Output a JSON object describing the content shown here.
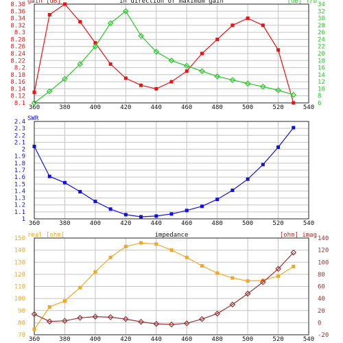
{
  "colors": {
    "gain": "#ee1111",
    "fb": "#22cc22",
    "swr": "#1111dd",
    "real": "#f5a623",
    "imag": "#993333",
    "grid": "#c4c4c4",
    "frame": "#222222",
    "label": "#111111"
  },
  "chart_data": [
    {
      "type": "line",
      "title": "in direction of maximum gain",
      "x": [
        360,
        370,
        380,
        390,
        400,
        410,
        420,
        430,
        440,
        450,
        460,
        470,
        480,
        490,
        500,
        510,
        520,
        530
      ],
      "xlim": [
        360,
        540
      ],
      "xticks": [
        "360",
        "380",
        "400",
        "420",
        "440",
        "460",
        "480",
        "500",
        "520",
        "540"
      ],
      "grid": true,
      "left_axis": {
        "label": "gain [dB]",
        "ylim": [
          8.1,
          8.38
        ],
        "ticks": [
          "8.1",
          "8.12",
          "8.14",
          "8.16",
          "8.18",
          "8.2",
          "8.22",
          "8.24",
          "8.26",
          "8.28",
          "8.3",
          "8.32",
          "8.34",
          "8.36",
          "8.38"
        ]
      },
      "right_axis": {
        "label": "[dB] f/b",
        "ylim": [
          6,
          34
        ],
        "ticks": [
          "6",
          "8",
          "10",
          "12",
          "14",
          "16",
          "18",
          "20",
          "22",
          "24",
          "26",
          "28",
          "30",
          "32",
          "34"
        ]
      },
      "series": [
        {
          "axis": "left",
          "marker": "square",
          "color_key": "gain",
          "values": [
            8.13,
            8.35,
            8.38,
            8.33,
            8.27,
            8.21,
            8.17,
            8.15,
            8.14,
            8.16,
            8.19,
            8.24,
            8.28,
            8.32,
            8.34,
            8.32,
            8.25,
            8.1
          ]
        },
        {
          "axis": "right",
          "marker": "diamond",
          "color_key": "fb",
          "values": [
            6,
            9.3,
            12.8,
            17.0,
            22.0,
            28.6,
            32.0,
            25.0,
            20.5,
            18.0,
            16.5,
            15.0,
            13.5,
            12.5,
            11.5,
            10.6,
            9.6,
            8.3
          ]
        }
      ]
    },
    {
      "type": "line",
      "title": "",
      "x": [
        360,
        370,
        380,
        390,
        400,
        410,
        420,
        430,
        440,
        450,
        460,
        470,
        480,
        490,
        500,
        510,
        520,
        530
      ],
      "xlim": [
        360,
        540
      ],
      "xticks": [
        "360",
        "380",
        "400",
        "420",
        "440",
        "460",
        "480",
        "500",
        "520",
        "540"
      ],
      "grid": true,
      "left_axis": {
        "label": "SWR",
        "ylim": [
          1,
          2.4
        ],
        "ticks": [
          "1",
          "1.1",
          "1.2",
          "1.3",
          "1.4",
          "1.5",
          "1.6",
          "1.7",
          "1.8",
          "1.9",
          "2",
          "2.1",
          "2.2",
          "2.3",
          "2.4"
        ]
      },
      "series": [
        {
          "axis": "left",
          "marker": "square",
          "color_key": "swr",
          "values": [
            2.04,
            1.61,
            1.52,
            1.39,
            1.25,
            1.14,
            1.06,
            1.03,
            1.04,
            1.07,
            1.12,
            1.18,
            1.28,
            1.41,
            1.57,
            1.78,
            2.03,
            2.31
          ]
        }
      ]
    },
    {
      "type": "line",
      "title": "impedance",
      "x": [
        360,
        370,
        380,
        390,
        400,
        410,
        420,
        430,
        440,
        450,
        460,
        470,
        480,
        490,
        500,
        510,
        520,
        530
      ],
      "xlim": [
        360,
        540
      ],
      "xticks": [
        "360",
        "380",
        "400",
        "420",
        "440",
        "460",
        "480",
        "500",
        "520",
        "540"
      ],
      "grid": true,
      "left_axis": {
        "label": "real [ohm]",
        "ylim": [
          70,
          150
        ],
        "ticks": [
          "70",
          "80",
          "90",
          "100",
          "110",
          "120",
          "130",
          "140",
          "150"
        ]
      },
      "right_axis": {
        "label": "[ohm] imag",
        "ylim": [
          -20,
          140
        ],
        "ticks": [
          "-20",
          "0",
          "20",
          "40",
          "60",
          "80",
          "100",
          "120",
          "140"
        ]
      },
      "series": [
        {
          "axis": "left",
          "marker": "square",
          "color_key": "real",
          "values": [
            74.5,
            93,
            98,
            109,
            122,
            134,
            143,
            146,
            145,
            140,
            134,
            127,
            121,
            117,
            114.5,
            115,
            118.5,
            126.5
          ]
        },
        {
          "axis": "right",
          "marker": "diamond",
          "color_key": "imag",
          "values": [
            14,
            2,
            3,
            8,
            10,
            9,
            6,
            1.5,
            -2,
            -3,
            -1,
            6,
            15,
            30,
            48,
            67,
            89,
            116
          ]
        }
      ]
    }
  ]
}
